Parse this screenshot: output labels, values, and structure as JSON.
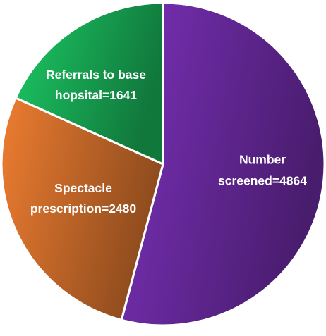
{
  "chart_data": {
    "type": "pie",
    "categories": [
      "Number screened",
      "Spectacle prescription",
      "Referrals to base hopsital"
    ],
    "values": [
      4864,
      2480,
      1641
    ],
    "value_labels": [
      [
        "Number",
        "screened=4864"
      ],
      [
        "Spectacle",
        "prescription=2480"
      ],
      [
        "Referrals to base",
        "hopsital=1641"
      ]
    ],
    "colors": [
      "#7a30b8",
      "#ed7d31",
      "#1cc864"
    ]
  }
}
